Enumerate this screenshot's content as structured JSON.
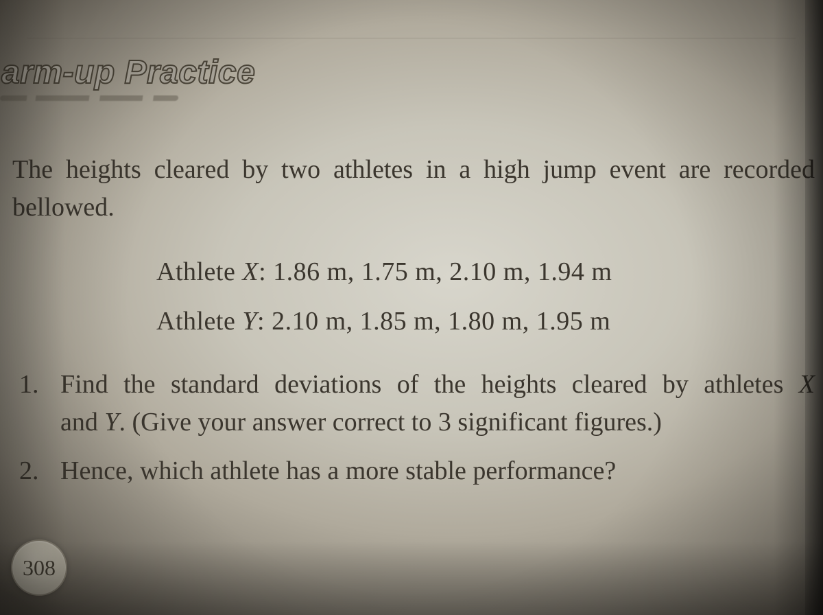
{
  "header": {
    "title": "arm-up Practice"
  },
  "intro": {
    "line1": "The heights cleared by two athletes in a high jump event are recorded",
    "line2": "bellowed."
  },
  "athletes": {
    "x": {
      "label": "Athlete ",
      "var": "X",
      "sep": ": ",
      "values": "1.86 m, 1.75 m, 2.10 m, 1.94 m"
    },
    "y": {
      "label": "Athlete ",
      "var": "Y",
      "sep": ": ",
      "values": "2.10 m, 1.85 m, 1.80 m, 1.95 m"
    }
  },
  "questions": {
    "q1": {
      "num": "1.",
      "line1a": "Find the standard deviations of the heights cleared by athletes ",
      "line1var": "X",
      "line2a": "and ",
      "line2var": "Y",
      "line2b": ". (Give your answer correct to 3 significant figures.)"
    },
    "q2": {
      "num": "2.",
      "text": "Hence, which athlete has a more stable performance?"
    }
  },
  "page_number": "308"
}
